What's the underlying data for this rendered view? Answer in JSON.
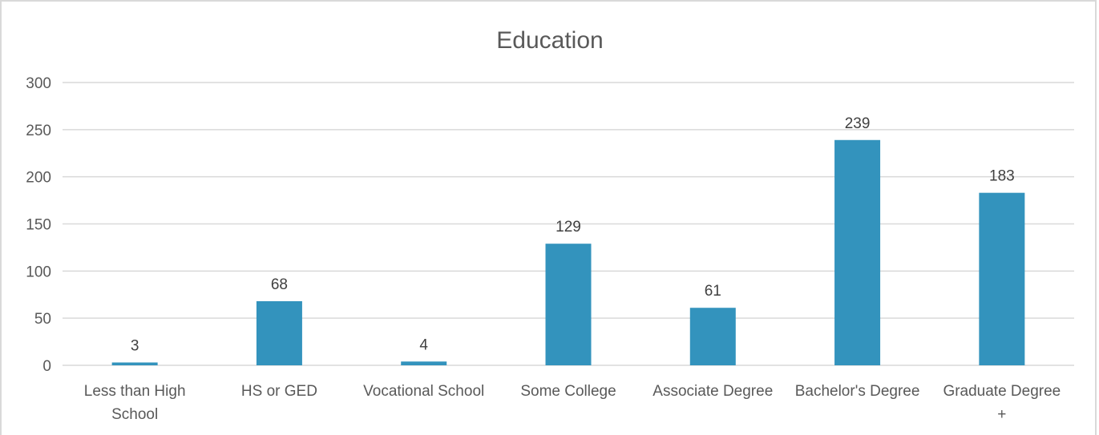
{
  "chart_data": {
    "type": "bar",
    "title": "Education",
    "xlabel": "",
    "ylabel": "",
    "categories": [
      [
        "Less than High",
        "School"
      ],
      [
        "HS or GED"
      ],
      [
        "Vocational School"
      ],
      [
        "Some College"
      ],
      [
        "Associate Degree"
      ],
      [
        "Bachelor's Degree"
      ],
      [
        "Graduate Degree",
        "+"
      ]
    ],
    "values": [
      3,
      68,
      4,
      129,
      61,
      239,
      183
    ],
    "ylim": [
      0,
      300
    ],
    "yticks": [
      0,
      50,
      100,
      150,
      200,
      250,
      300
    ],
    "grid": true,
    "legend": "none",
    "colors": {
      "bar": "#3393bd",
      "grid": "#d9d9d9",
      "axis": "#d9d9d9",
      "text": "#595959",
      "label": "#404040"
    }
  }
}
